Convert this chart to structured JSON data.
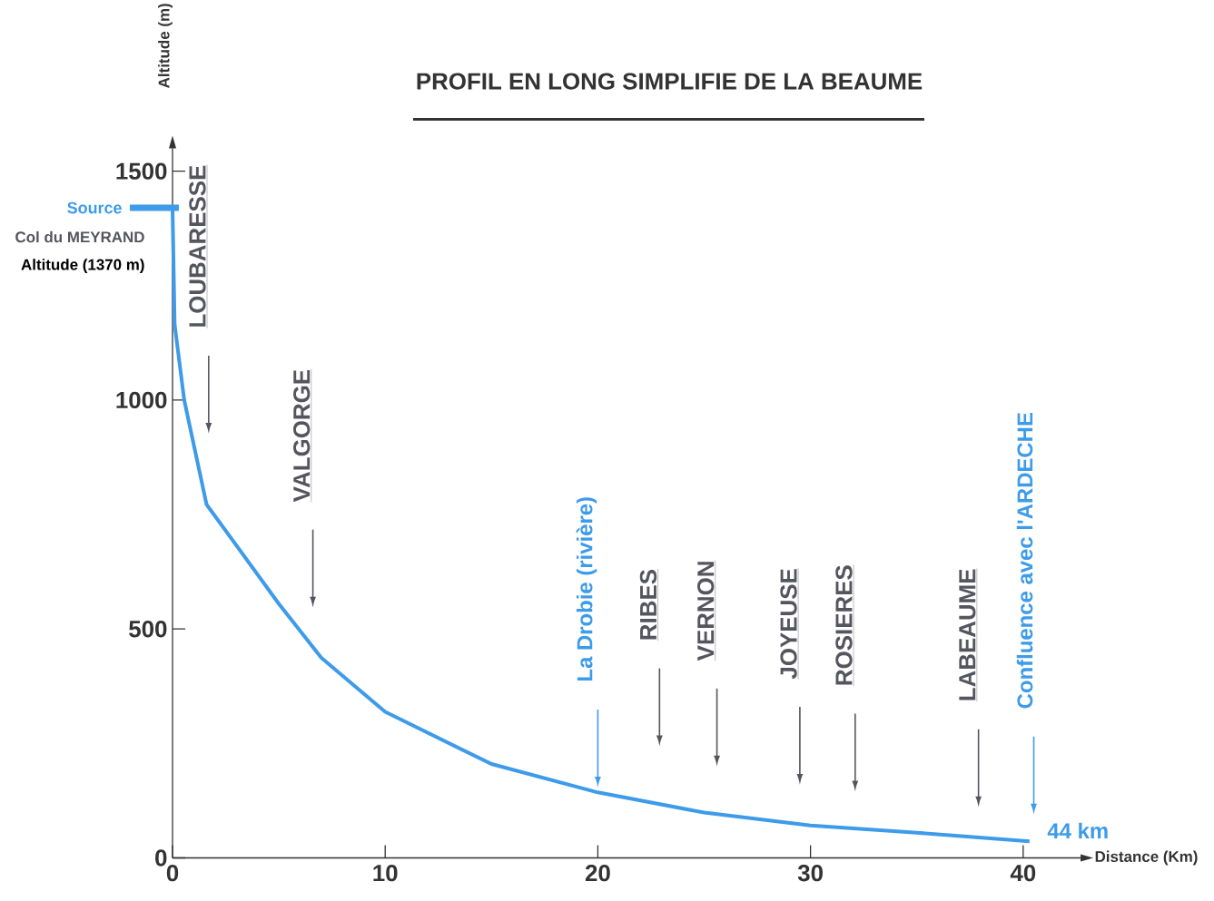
{
  "chart_data": {
    "type": "line",
    "title": "PROFIL EN LONG SIMPLIFIE DE LA BEAUME",
    "xlabel": "Distance (Km)",
    "ylabel": "Altitude (m)",
    "x": [
      0,
      0.1,
      0.55,
      1.6,
      5,
      7,
      10,
      15,
      20,
      25,
      30,
      35,
      40.3
    ],
    "series": [
      {
        "color": "#3d9be9",
        "values": [
          1420,
          1165,
          1000,
          772,
          555,
          437,
          319,
          205,
          143,
          99,
          71,
          55,
          36
        ]
      }
    ],
    "xlim": [
      0,
      42.7
    ],
    "ylim": [
      0,
      1550
    ],
    "xticks": [
      0,
      10,
      20,
      30,
      40
    ],
    "yticks": [
      0,
      500,
      1000,
      1500
    ],
    "marker": "none",
    "annotations": [
      "Source",
      "Col du MEYRAND",
      "Altitude (1370 m)",
      "LOUBARESSE",
      "VALGORGE",
      "La Drobie (rivière)",
      "RIBES",
      "VERNON",
      "JOYEUSE",
      "ROSIERES",
      "LABEAUME",
      "Confluence avec l'ARDECHE",
      {
        "text": "44 km",
        "x": 40.3,
        "y": 36
      }
    ]
  }
}
